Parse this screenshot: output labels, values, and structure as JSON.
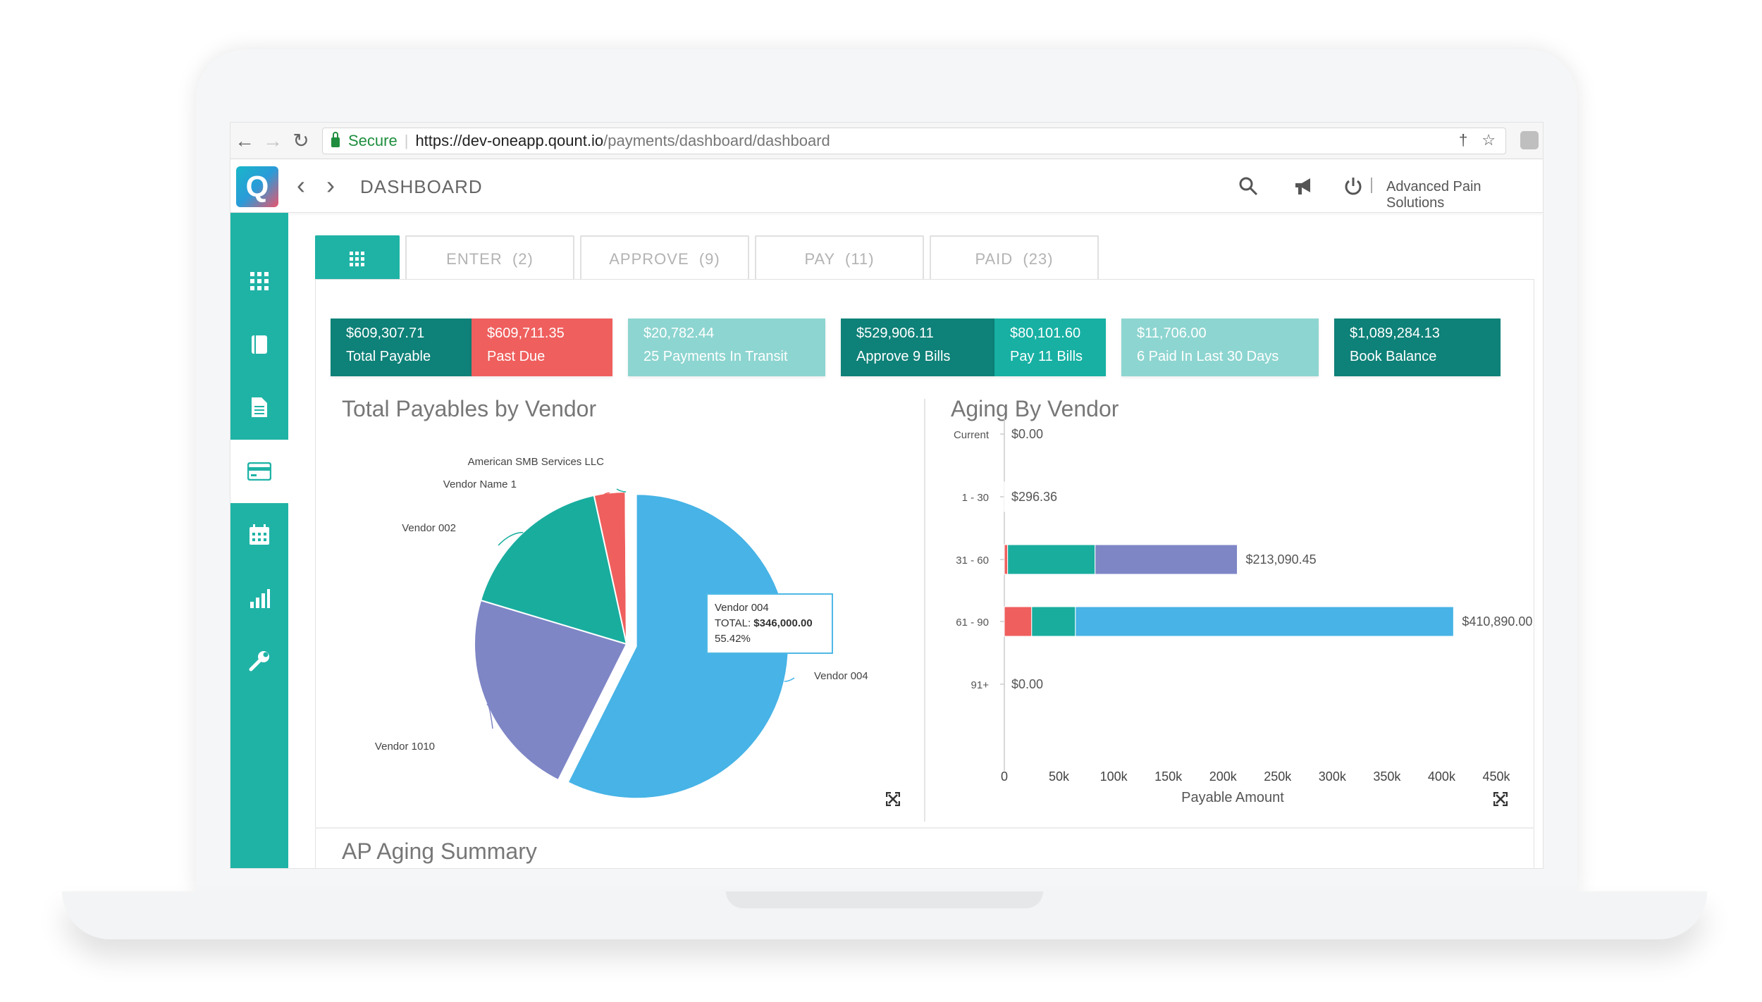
{
  "browser": {
    "secure_label": "Secure",
    "url_scheme": "https://",
    "url_host": "dev-oneapp.qount.io",
    "url_path": "/payments/dashboard/dashboard"
  },
  "header": {
    "logo_letter": "Q",
    "title": "DASHBOARD",
    "company": "Advanced Pain Solutions"
  },
  "tabs": [
    {
      "label": "ENTER  (2)"
    },
    {
      "label": "APPROVE  (9)"
    },
    {
      "label": "PAY  (11)"
    },
    {
      "label": "PAID  (23)"
    }
  ],
  "tiles": [
    {
      "amount": "$609,307.71",
      "label": "Total Payable"
    },
    {
      "amount": "$609,711.35",
      "label": "Past Due"
    },
    {
      "amount": "$20,782.44",
      "label": "25 Payments In Transit"
    },
    {
      "amount": "$529,906.11",
      "label": "Approve 9 Bills"
    },
    {
      "amount": "$80,101.60",
      "label": "Pay 11 Bills"
    },
    {
      "amount": "$11,706.00",
      "label": "6 Paid In Last 30 Days"
    },
    {
      "amount": "$1,089,284.13",
      "label": "Book Balance"
    }
  ],
  "sections": {
    "pie_title": "Total Payables by Vendor",
    "bar_title": "Aging By Vendor",
    "summary_title": "AP Aging Summary"
  },
  "tooltip": {
    "vendor": "Vendor 004",
    "total_prefix": "TOTAL: ",
    "total_value": "$346,000.00",
    "percent": "55.42%"
  },
  "chart_data": [
    {
      "type": "pie",
      "title": "Total Payables by Vendor",
      "labels": [
        "Vendor 004",
        "Vendor 1010",
        "Vendor 002",
        "Vendor Name 1",
        "American SMB Services LLC"
      ],
      "values": [
        346000,
        134000,
        102000,
        20000,
        700
      ],
      "percentages": [
        55.42,
        21.5,
        16.3,
        3.2,
        0.1
      ],
      "colors": [
        "#47b3e6",
        "#7e86c6",
        "#19ad9e",
        "#ef5f5d",
        "#19ad9e"
      ]
    },
    {
      "type": "bar",
      "orientation": "horizontal",
      "stacked": true,
      "title": "Aging By Vendor",
      "xlabel": "Payable Amount",
      "categories": [
        "Current",
        "1 - 30",
        "31 - 60",
        "61 - 90",
        "91+"
      ],
      "totals_labels": [
        "$0.00",
        "$296.36",
        "$213,090.45",
        "$410,890.00",
        "$0.00"
      ],
      "series": [
        {
          "color": "#ef5f5d",
          "values": [
            0,
            0,
            3000,
            25000,
            0
          ]
        },
        {
          "color": "#19ad9e",
          "values": [
            0,
            296.36,
            80000,
            40000,
            0
          ]
        },
        {
          "color": "#7e86c6",
          "values": [
            0,
            0,
            130090.45,
            0,
            0
          ]
        },
        {
          "color": "#47b3e6",
          "values": [
            0,
            0,
            0,
            345890,
            0
          ]
        }
      ],
      "xlim": [
        0,
        450000
      ],
      "xticks": [
        "0",
        "50k",
        "100k",
        "150k",
        "200k",
        "250k",
        "300k",
        "350k",
        "400k",
        "450k"
      ]
    }
  ]
}
